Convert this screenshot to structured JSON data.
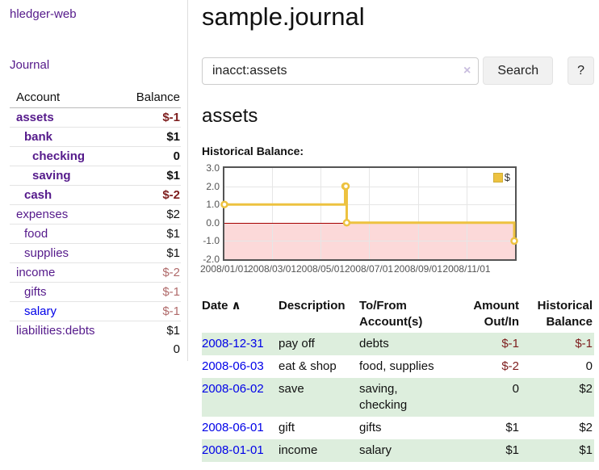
{
  "sidebar": {
    "brand": "hledger-web",
    "journal_link": "Journal",
    "accounts": {
      "header_account": "Account",
      "header_balance": "Balance",
      "rows": [
        {
          "name": "assets",
          "balance": "$-1",
          "depth": 0,
          "in_acct": true,
          "negative": "strong",
          "unvisited": false
        },
        {
          "name": "bank",
          "balance": "$1",
          "depth": 1,
          "in_acct": true,
          "negative": null,
          "unvisited": false
        },
        {
          "name": "checking",
          "balance": "0",
          "depth": 2,
          "in_acct": true,
          "negative": null,
          "unvisited": false
        },
        {
          "name": "saving",
          "balance": "$1",
          "depth": 2,
          "in_acct": true,
          "negative": null,
          "unvisited": false
        },
        {
          "name": "cash",
          "balance": "$-2",
          "depth": 1,
          "in_acct": true,
          "negative": "strong",
          "unvisited": false
        },
        {
          "name": "expenses",
          "balance": "$2",
          "depth": 0,
          "in_acct": false,
          "negative": null,
          "unvisited": false
        },
        {
          "name": "food",
          "balance": "$1",
          "depth": 1,
          "in_acct": false,
          "negative": null,
          "unvisited": false
        },
        {
          "name": "supplies",
          "balance": "$1",
          "depth": 1,
          "in_acct": false,
          "negative": null,
          "unvisited": false
        },
        {
          "name": "income",
          "balance": "$-2",
          "depth": 0,
          "in_acct": false,
          "negative": "light",
          "unvisited": false
        },
        {
          "name": "gifts",
          "balance": "$-1",
          "depth": 1,
          "in_acct": false,
          "negative": "light",
          "unvisited": false
        },
        {
          "name": "salary",
          "balance": "$-1",
          "depth": 1,
          "in_acct": false,
          "negative": "light",
          "unvisited": true
        },
        {
          "name": "liabilities:debts",
          "balance": "$1",
          "depth": 0,
          "in_acct": false,
          "negative": null,
          "unvisited": false
        }
      ],
      "total": "0"
    }
  },
  "main": {
    "title": "sample.journal",
    "search": {
      "value": "inacct:assets",
      "clear_icon": "×",
      "button_label": "Search",
      "help_label": "?"
    },
    "section_title": "assets",
    "register": {
      "headers": {
        "date": "Date",
        "sort_indicator": "∧",
        "description": "Description",
        "accounts": "To/From Account(s)",
        "amount": "Amount Out/In",
        "balance": "Historical Balance"
      },
      "rows": [
        {
          "date": "2008-12-31",
          "description": "pay off",
          "accounts": "debts",
          "amount": "$-1",
          "amount_negative": true,
          "balance": "$-1",
          "balance_negative": true
        },
        {
          "date": "2008-06-03",
          "description": "eat & shop",
          "accounts": "food, supplies",
          "amount": "$-2",
          "amount_negative": true,
          "balance": "0",
          "balance_negative": false
        },
        {
          "date": "2008-06-02",
          "description": "save",
          "accounts": "saving, checking",
          "amount": "0",
          "amount_negative": false,
          "balance": "$2",
          "balance_negative": false
        },
        {
          "date": "2008-06-01",
          "description": "gift",
          "accounts": "gifts",
          "amount": "$1",
          "amount_negative": false,
          "balance": "$2",
          "balance_negative": false
        },
        {
          "date": "2008-01-01",
          "description": "income",
          "accounts": "salary",
          "amount": "$1",
          "amount_negative": false,
          "balance": "$1",
          "balance_negative": false
        }
      ]
    }
  },
  "chart_data": {
    "type": "line",
    "title": "Historical Balance:",
    "step": true,
    "ylim": [
      -2,
      3
    ],
    "x_range": [
      "2008-01-01",
      "2009-01-01"
    ],
    "grid": true,
    "legend_position": "top-right",
    "series": [
      {
        "name": "$",
        "color": "#edc240",
        "points": [
          [
            "2008-01-01",
            1
          ],
          [
            "2008-06-01",
            2
          ],
          [
            "2008-06-02",
            2
          ],
          [
            "2008-06-03",
            0
          ],
          [
            "2008-12-31",
            -1
          ]
        ]
      }
    ],
    "y_ticks": [
      {
        "value": 3,
        "label": "3.0"
      },
      {
        "value": 2,
        "label": "2.0"
      },
      {
        "value": 1,
        "label": "1.0"
      },
      {
        "value": 0,
        "label": "0.0"
      },
      {
        "value": -1,
        "label": "-1.0"
      },
      {
        "value": -2,
        "label": "-2.0"
      }
    ],
    "x_ticks": [
      {
        "date": "2008-01-01",
        "label": "2008/01/01"
      },
      {
        "date": "2008-03-01",
        "label": "2008/03/01"
      },
      {
        "date": "2008-05-01",
        "label": "2008/05/01"
      },
      {
        "date": "2008-07-01",
        "label": "2008/07/01"
      },
      {
        "date": "2008-09-01",
        "label": "2008/09/01"
      },
      {
        "date": "2008-11-01",
        "label": "2008/11/01"
      }
    ],
    "negative_region_color": "#fcd9d9",
    "zero_line_color": "#a40000"
  }
}
